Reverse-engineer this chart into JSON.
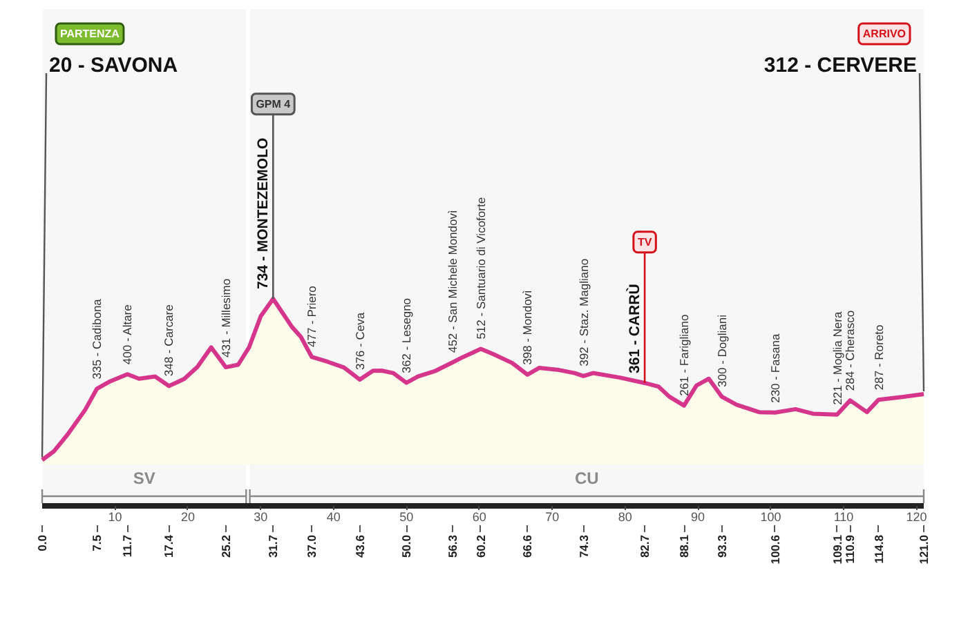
{
  "chart_data": {
    "type": "area",
    "x": [
      0,
      1.6,
      3.5,
      5.9,
      7.5,
      9.3,
      11.7,
      13.3,
      15.5,
      17.4,
      19.5,
      21.3,
      23.2,
      25.2,
      26.9,
      28.4,
      30,
      31.7,
      34.3,
      35.5,
      37,
      39.2,
      41.4,
      43.6,
      45.4,
      46.6,
      48.2,
      50,
      51.6,
      54,
      56.3,
      57.7,
      60.2,
      62,
      64.5,
      66.6,
      68.2,
      70.7,
      73.1,
      74.3,
      75.6,
      79.3,
      82.7,
      84.6,
      86.1,
      88.1,
      89.8,
      91.5,
      93.3,
      95.3,
      98.4,
      100.6,
      103.4,
      105.8,
      109.1,
      110.9,
      113.2,
      114.8,
      118.2,
      121
    ],
    "series": [
      {
        "color": "#d5368c",
        "values": [
          20,
          58,
          133,
          242,
          335,
          368,
          400,
          380,
          390,
          348,
          379,
          432,
          519,
          431,
          442,
          519,
          657,
          734,
          609,
          566,
          477,
          455,
          430,
          376,
          415,
          416,
          405,
          362,
          390,
          415,
          452,
          475,
          512,
          488,
          450,
          398,
          428,
          420,
          405,
          392,
          405,
          385,
          361,
          345,
          300,
          261,
          350,
          380,
          300,
          265,
          232,
          230,
          245,
          225,
          221,
          284,
          232,
          287,
          300,
          312
        ],
        "value_labels": [
          "20 - SAVONA",
          null,
          null,
          null,
          "335 - Cadibona",
          null,
          "400 - Altare",
          null,
          null,
          "348 - Carcare",
          null,
          null,
          null,
          "431 - Millesimo",
          null,
          null,
          null,
          "734 - MONTEZEMOLO",
          null,
          null,
          "477 - Priero",
          null,
          null,
          "376 - Ceva",
          null,
          null,
          null,
          "362 - Lesegno",
          null,
          null,
          "452 - San Michele Mondovì",
          null,
          "512 - Santuario di Vicoforte",
          null,
          null,
          "398 - Mondovì",
          null,
          null,
          null,
          "392 - Staz. Magliano",
          null,
          null,
          "361 - CARRÙ",
          null,
          null,
          "261 - Farigliano",
          null,
          null,
          "300 - Dogliani",
          null,
          null,
          "230 - Fasana",
          null,
          null,
          "221 - Moglia Nera",
          "284 - Cherasco",
          null,
          "287 - Roreto",
          null,
          "312 - CERVERE"
        ]
      }
    ],
    "xlim": [
      0,
      121
    ],
    "xticks": [
      {
        "value": 0,
        "label": "0.0"
      },
      7.5,
      11.7,
      17.4,
      25.2,
      31.7,
      {
        "value": 37,
        "label": "37.0"
      },
      43.6,
      {
        "value": 50,
        "label": "50.0"
      },
      56.3,
      60.2,
      66.6,
      74.3,
      82.7,
      88.1,
      93.3,
      100.6,
      109.1,
      110.9,
      114.8,
      {
        "value": 121,
        "label": "121.0"
      }
    ],
    "x2lim": [
      0,
      121
    ],
    "x2ticks": [
      10,
      20,
      30,
      40,
      50,
      60,
      70,
      80,
      90,
      100,
      110,
      120
    ],
    "bands": [
      {
        "axis": "x",
        "from": 0,
        "to": 28,
        "label": "SV"
      },
      {
        "axis": "x",
        "from": 28.5,
        "to": 121,
        "label": "CU"
      }
    ],
    "annotations": [
      "PARTENZA",
      {
        "text": "GPM 4",
        "x": 31.7,
        "y": 734
      },
      {
        "text": "TV",
        "x": 82.7,
        "y": 361
      },
      "ARRIVO"
    ]
  }
}
